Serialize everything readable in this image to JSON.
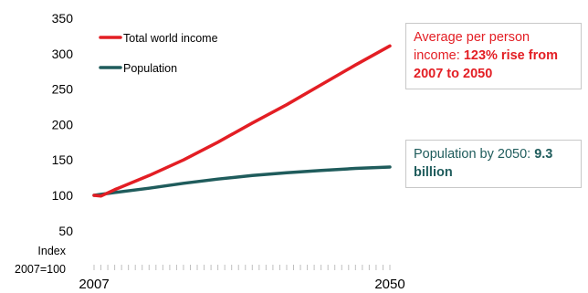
{
  "chart_data": {
    "type": "line",
    "x": [
      2007,
      2050
    ],
    "xtick_labels": [
      "2007",
      "2050"
    ],
    "ylim": [
      0,
      350
    ],
    "yticks": [
      50,
      100,
      150,
      200,
      250,
      300,
      350
    ],
    "ylabel_lines": [
      "Index",
      "2007=100"
    ],
    "grid": false,
    "legend_position": "top-left",
    "series": [
      {
        "name": "Total world income",
        "color": "#e31e24",
        "points": [
          [
            2007,
            100
          ],
          [
            2008,
            99
          ],
          [
            2010,
            108
          ],
          [
            2015,
            128
          ],
          [
            2020,
            150
          ],
          [
            2025,
            175
          ],
          [
            2030,
            202
          ],
          [
            2035,
            228
          ],
          [
            2040,
            256
          ],
          [
            2045,
            284
          ],
          [
            2050,
            311
          ]
        ]
      },
      {
        "name": "Population",
        "color": "#1f5c5c",
        "points": [
          [
            2007,
            100
          ],
          [
            2010,
            104
          ],
          [
            2015,
            110
          ],
          [
            2020,
            117
          ],
          [
            2025,
            123
          ],
          [
            2030,
            128
          ],
          [
            2035,
            132
          ],
          [
            2040,
            135
          ],
          [
            2045,
            138
          ],
          [
            2050,
            140
          ]
        ]
      }
    ],
    "annotations": [
      {
        "color": "#e31e24",
        "text_normal": "Average per person income: ",
        "text_bold": "123% rise from 2007 to 2050"
      },
      {
        "color": "#1f5c5c",
        "text_normal": "Population by 2050: ",
        "text_bold": "9.3 billion"
      }
    ]
  }
}
